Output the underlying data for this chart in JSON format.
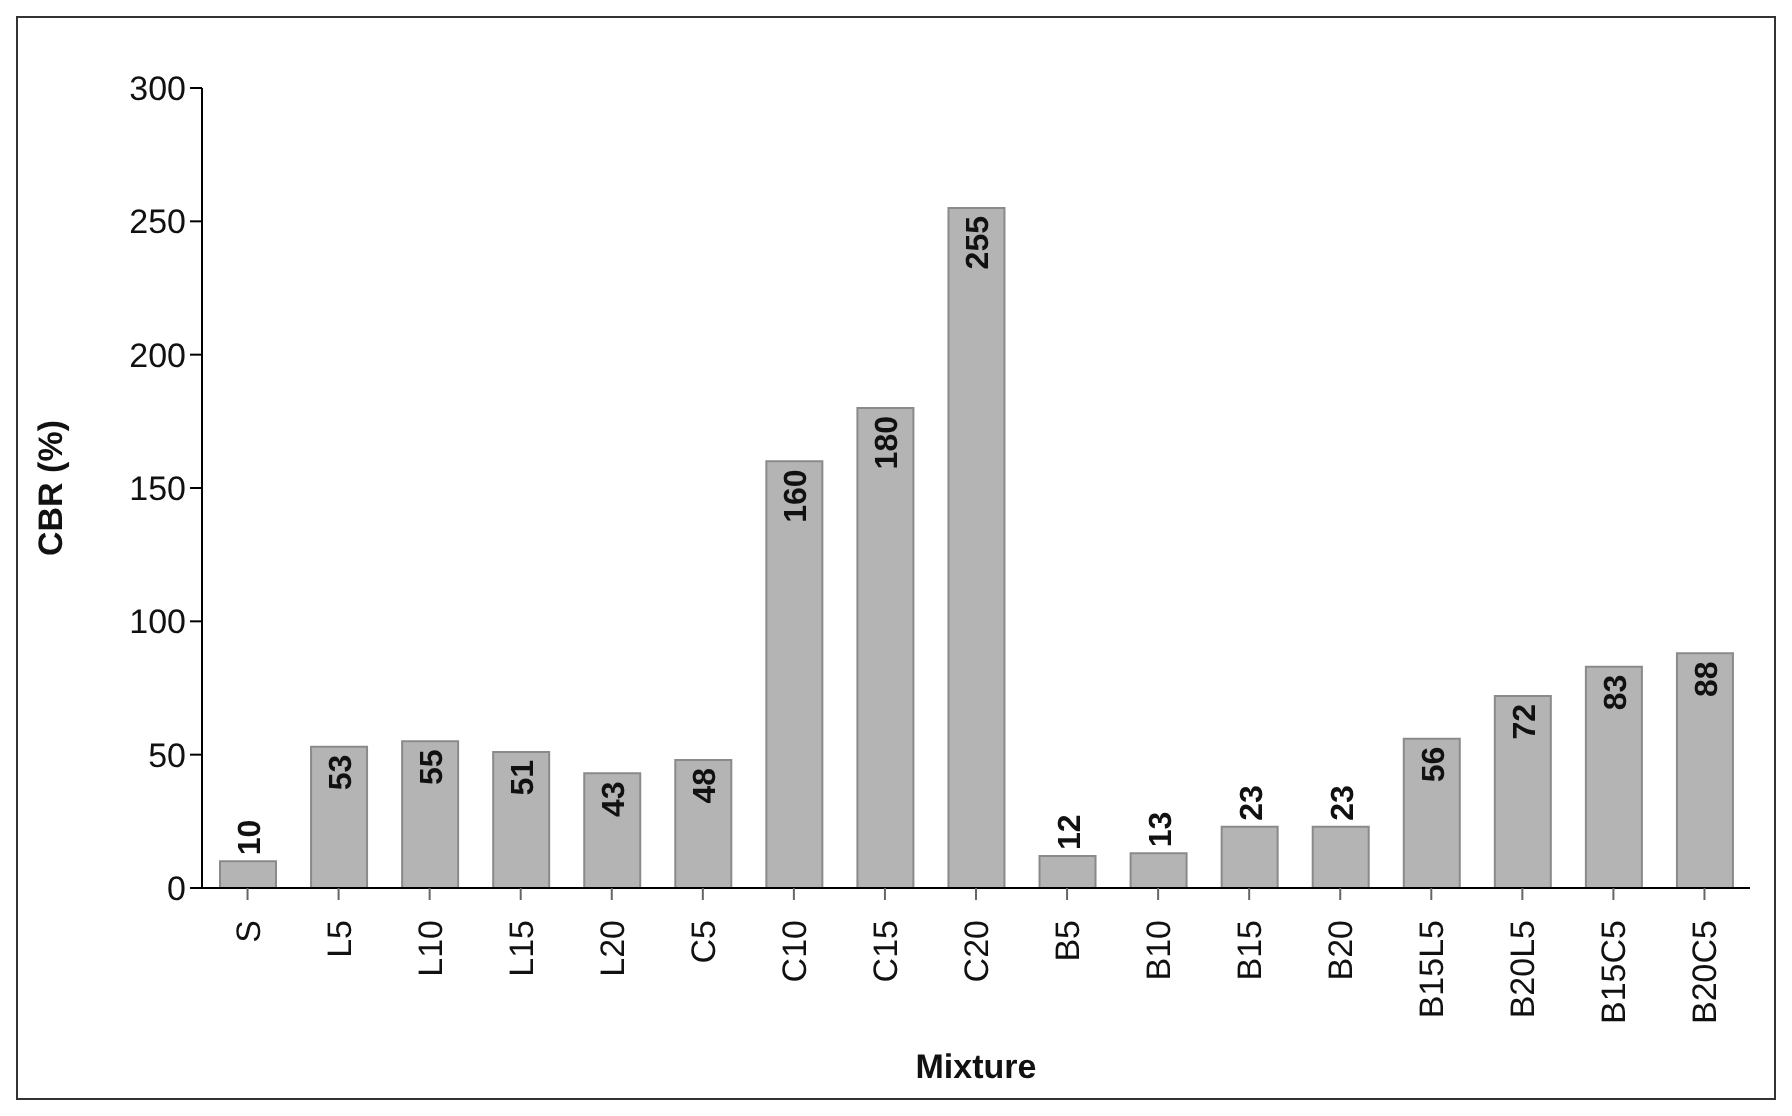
{
  "chart_data": {
    "type": "bar",
    "xlabel": "Mixture",
    "ylabel": "CBR (%)",
    "categories": [
      "S",
      "L5",
      "L10",
      "L15",
      "L20",
      "C5",
      "C10",
      "C15",
      "C20",
      "B5",
      "B10",
      "B15",
      "B20",
      "B15L5",
      "B20L5",
      "B15C5",
      "B20C5"
    ],
    "values": [
      10,
      53,
      55,
      51,
      43,
      48,
      160,
      180,
      255,
      12,
      13,
      23,
      23,
      56,
      72,
      83,
      88
    ],
    "color": "#b4b4b4",
    "ylim": [
      0,
      300
    ],
    "yticks": [
      0,
      50,
      100,
      150,
      200,
      250,
      300
    ],
    "data_labels": true
  }
}
